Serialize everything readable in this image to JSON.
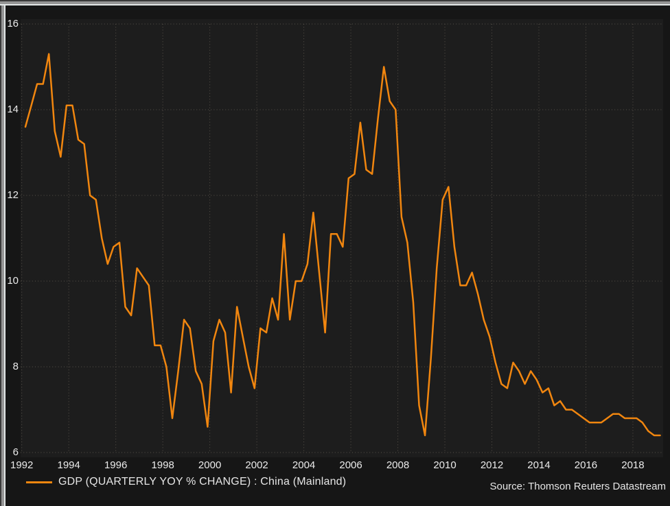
{
  "chart": {
    "background_color": "#161616",
    "plot_background_color": "#1d1d1d",
    "grid_color": "#58524a",
    "line_color": "#f1860f",
    "tick_label_color": "#ebebeb",
    "legend": {
      "label": "GDP (QUARTERLY YOY % CHANGE) : China (Mainland)"
    },
    "source": "Source: Thomson Reuters Datastream"
  },
  "chart_data": {
    "type": "line",
    "title": "",
    "xlabel": "",
    "ylabel": "",
    "grid": true,
    "legend_position": "bottom-left",
    "ylim": [
      6,
      16
    ],
    "y_ticks": [
      16,
      14,
      12,
      10,
      8,
      6
    ],
    "x_tick_years": [
      1992,
      1994,
      1996,
      1998,
      2000,
      2002,
      2004,
      2006,
      2008,
      2010,
      2012,
      2014,
      2016,
      2018
    ],
    "source": "Source: Thomson Reuters Datastream",
    "series": [
      {
        "name": "GDP (QUARTERLY YOY % CHANGE) : China (Mainland)",
        "start": "1992-Q1",
        "end": "2019-Q1",
        "frequency": "quarterly",
        "unit": "percent",
        "values": [
          13.6,
          14.1,
          14.6,
          14.6,
          15.3,
          13.5,
          12.9,
          14.1,
          14.1,
          13.3,
          13.2,
          12.0,
          11.9,
          11.0,
          10.4,
          10.8,
          10.9,
          9.4,
          9.2,
          10.3,
          10.1,
          9.9,
          8.5,
          8.5,
          8.0,
          6.8,
          7.9,
          9.1,
          8.9,
          7.9,
          7.6,
          6.6,
          8.6,
          9.1,
          8.8,
          7.4,
          9.4,
          8.7,
          8.0,
          7.5,
          8.9,
          8.8,
          9.6,
          9.1,
          11.1,
          9.1,
          10.0,
          10.0,
          10.4,
          11.6,
          10.2,
          8.8,
          11.1,
          11.1,
          10.8,
          12.4,
          12.5,
          13.7,
          12.6,
          12.5,
          13.8,
          15.0,
          14.2,
          14.0,
          11.5,
          10.9,
          9.5,
          7.1,
          6.4,
          8.2,
          10.3,
          11.9,
          12.2,
          10.8,
          9.9,
          9.9,
          10.2,
          9.7,
          9.1,
          8.7,
          8.1,
          7.6,
          7.5,
          8.1,
          7.9,
          7.6,
          7.9,
          7.7,
          7.4,
          7.5,
          7.1,
          7.2,
          7.0,
          7.0,
          6.9,
          6.8,
          6.7,
          6.7,
          6.7,
          6.8,
          6.9,
          6.9,
          6.8,
          6.8,
          6.8,
          6.7,
          6.5,
          6.4,
          6.4
        ]
      }
    ]
  }
}
